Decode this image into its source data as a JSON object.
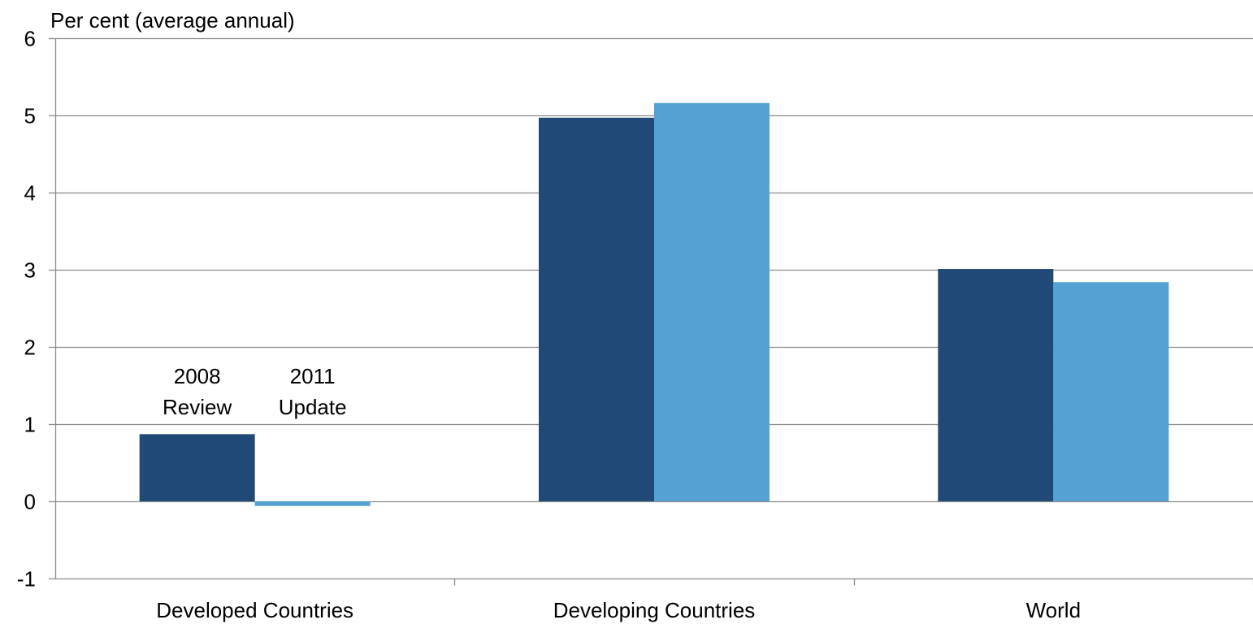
{
  "chart_data": {
    "type": "bar",
    "ylabel": "Per cent (average annual)",
    "categories": [
      "Developed Countries",
      "Developing Countries",
      "World"
    ],
    "series": [
      {
        "name": "2008 Review",
        "label_lines": [
          "2008",
          "Review"
        ],
        "values": [
          0.87,
          4.97,
          3.01
        ],
        "color": "#214978"
      },
      {
        "name": "2011 Update",
        "label_lines": [
          "2011",
          "Update"
        ],
        "values": [
          -0.06,
          5.16,
          2.84
        ],
        "color": "#56a1d3"
      }
    ],
    "ylim": [
      -1,
      6
    ],
    "yticks": [
      -1,
      0,
      1,
      2,
      3,
      4,
      5,
      6
    ],
    "grid": true,
    "legend": "inline labels above first category"
  }
}
